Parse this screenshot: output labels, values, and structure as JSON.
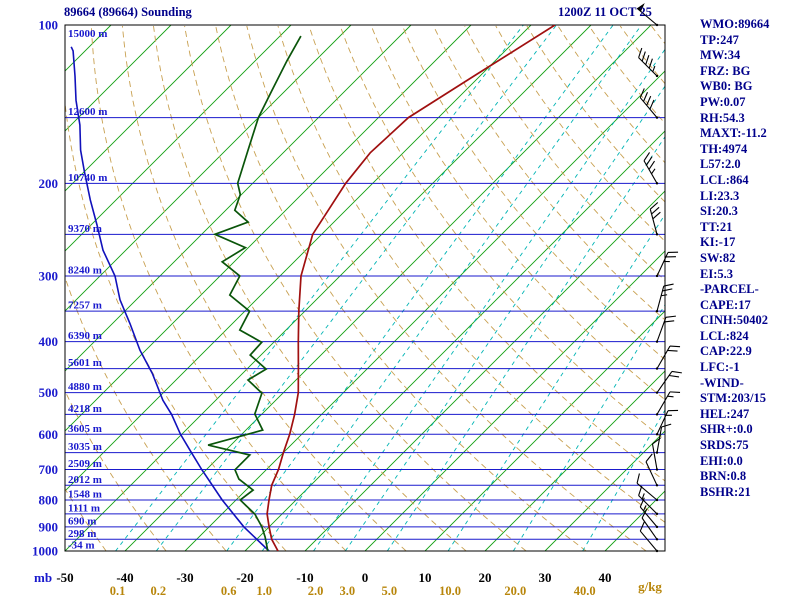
{
  "header": {
    "title": "89664 (89664) Sounding",
    "datetime": "1200Z 11 OCT 25"
  },
  "stats": [
    "WMO:89664",
    "TP:247",
    "MW:34",
    "FRZ: BG",
    "WB0: BG",
    "PW:0.07",
    "RH:54.3",
    "MAXT:-11.2",
    "TH:4974",
    "L57:2.0",
    "LCL:864",
    "LI:23.3",
    "SI:20.3",
    "TT:21",
    "KI:-17",
    "SW:82",
    "EI:5.3",
    "-PARCEL-",
    "CAPE:17",
    "CINH:50402",
    "LCL:824",
    "CAP:22.9",
    "LFC:-1",
    "-WIND-",
    "STM:203/15",
    "HEL:247",
    "SHR+:0.0",
    "SRDS:75",
    "EHI:0.0",
    "BRN:0.8",
    "BSHR:21"
  ],
  "chart_data": {
    "type": "skewt-sounding",
    "title": "89664 (89664) Sounding",
    "time": "1200Z 11 OCT 25",
    "pressure_unit": "mb",
    "mixing_ratio_unit": "g/kg",
    "pressure_ticks": [
      100,
      200,
      300,
      400,
      500,
      600,
      700,
      800,
      900,
      1000
    ],
    "temp_ticks": [
      -50,
      -40,
      -30,
      -20,
      -10,
      0,
      10,
      20,
      30,
      40
    ],
    "isotherm_range": [
      -130,
      40
    ],
    "isotherm_step": 10,
    "adiabat_range": [
      230,
      450
    ],
    "adiabat_step": 10,
    "mixing_ratio_values": [
      {
        "label": "0.1",
        "w": 0.1
      },
      {
        "label": "0.2",
        "w": 0.2
      },
      {
        "label": "0.6",
        "w": 0.6
      },
      {
        "label": "1.0",
        "w": 1.0
      },
      {
        "label": "2.0",
        "w": 2.0
      },
      {
        "label": "3.0",
        "w": 3.0
      },
      {
        "label": "5.0",
        "w": 5.0
      },
      {
        "label": "10.0",
        "w": 10.0
      },
      {
        "label": "20.0",
        "w": 20.0
      },
      {
        "label": "40.0",
        "w": 40.0
      }
    ],
    "heights": [
      {
        "p": 100,
        "label": "15000 m"
      },
      {
        "p": 150,
        "label": "12600 m"
      },
      {
        "p": 200,
        "label": "10740 m"
      },
      {
        "p": 250,
        "label": "9370 m"
      },
      {
        "p": 300,
        "label": "8240 m"
      },
      {
        "p": 350,
        "label": "7257 m"
      },
      {
        "p": 400,
        "label": "6390 m"
      },
      {
        "p": 450,
        "label": "5601 m"
      },
      {
        "p": 500,
        "label": "4880 m"
      },
      {
        "p": 550,
        "label": "4218 m"
      },
      {
        "p": 600,
        "label": "3605 m"
      },
      {
        "p": 650,
        "label": "3035 m"
      },
      {
        "p": 700,
        "label": "2509 m"
      },
      {
        "p": 750,
        "label": "2012 m"
      },
      {
        "p": 800,
        "label": "1548 m"
      },
      {
        "p": 850,
        "label": "1111 m"
      },
      {
        "p": 900,
        "label": "690 m"
      },
      {
        "p": 950,
        "label": "298 m"
      },
      {
        "p": 1000,
        "label": "-34 m"
      }
    ],
    "series": {
      "temperature": [
        [
          1000,
          -14.5
        ],
        [
          950,
          -17.5
        ],
        [
          900,
          -20
        ],
        [
          850,
          -22.5
        ],
        [
          800,
          -24.5
        ],
        [
          750,
          -26.5
        ],
        [
          700,
          -28
        ],
        [
          650,
          -30
        ],
        [
          600,
          -32
        ],
        [
          550,
          -34.5
        ],
        [
          500,
          -37.5
        ],
        [
          450,
          -41.5
        ],
        [
          400,
          -46
        ],
        [
          350,
          -51
        ],
        [
          300,
          -56.5
        ],
        [
          250,
          -61.5
        ],
        [
          200,
          -64.5
        ],
        [
          175,
          -65.5
        ],
        [
          150,
          -65
        ],
        [
          125,
          -61
        ],
        [
          100,
          -56
        ]
      ],
      "dewpoint": [
        [
          1000,
          -16.2
        ],
        [
          940,
          -19
        ],
        [
          900,
          -21.2
        ],
        [
          851,
          -24.5
        ],
        [
          800,
          -29.3
        ],
        [
          766,
          -28.8
        ],
        [
          730,
          -33
        ],
        [
          701,
          -35.2
        ],
        [
          657,
          -35.2
        ],
        [
          629,
          -43.8
        ],
        [
          589,
          -37.2
        ],
        [
          549,
          -41.2
        ],
        [
          501,
          -43.5
        ],
        [
          473,
          -48
        ],
        [
          451,
          -46.8
        ],
        [
          424,
          -51.8
        ],
        [
          401,
          -52
        ],
        [
          380,
          -57.7
        ],
        [
          350,
          -59.2
        ],
        [
          326,
          -65.2
        ],
        [
          300,
          -66.7
        ],
        [
          282,
          -72
        ],
        [
          265,
          -70.5
        ],
        [
          250,
          -77.8
        ],
        [
          237,
          -74.3
        ],
        [
          225,
          -78.5
        ],
        [
          210,
          -80.2
        ],
        [
          200,
          -82.5
        ],
        [
          173,
          -86.3
        ],
        [
          150,
          -90
        ],
        [
          133,
          -92.3
        ],
        [
          117,
          -94.7
        ],
        [
          105,
          -96.5
        ]
      ],
      "parcel": [
        [
          1000,
          -16
        ],
        [
          900,
          -24.2
        ],
        [
          800,
          -32.3
        ],
        [
          700,
          -40.8
        ],
        [
          643,
          -46
        ],
        [
          600,
          -50.2
        ],
        [
          550,
          -55
        ],
        [
          517,
          -58.8
        ],
        [
          460,
          -65
        ],
        [
          415,
          -71
        ],
        [
          370,
          -77
        ],
        [
          333,
          -82.7
        ],
        [
          300,
          -87.5
        ],
        [
          268,
          -93.8
        ],
        [
          240,
          -99
        ],
        [
          215,
          -104.3
        ],
        [
          190,
          -110
        ],
        [
          173,
          -114.2
        ],
        [
          155,
          -118.5
        ],
        [
          139,
          -123.3
        ],
        [
          125,
          -127.5
        ],
        [
          112,
          -132
        ],
        [
          110,
          -133
        ]
      ]
    },
    "winds": [
      [
        1000,
        320,
        10
      ],
      [
        950,
        325,
        10
      ],
      [
        900,
        320,
        15
      ],
      [
        850,
        315,
        15
      ],
      [
        800,
        310,
        10
      ],
      [
        750,
        335,
        10
      ],
      [
        700,
        350,
        10
      ],
      [
        650,
        10,
        10
      ],
      [
        600,
        25,
        15
      ],
      [
        550,
        30,
        15
      ],
      [
        500,
        35,
        20
      ],
      [
        450,
        30,
        20
      ],
      [
        400,
        20,
        20
      ],
      [
        350,
        15,
        25
      ],
      [
        300,
        25,
        25
      ],
      [
        250,
        345,
        30
      ],
      [
        200,
        330,
        35
      ],
      [
        150,
        320,
        40
      ],
      [
        125,
        315,
        45
      ],
      [
        100,
        310,
        50
      ]
    ],
    "wind_x": 657,
    "colors": {
      "axis": "#1a1acd",
      "title": "#00008b",
      "isotherm": "#12a012",
      "mixratio": "#00b4b4",
      "adiabat": "#c8a050",
      "temperature": "#a01010",
      "dewpoint": "#0a550a",
      "parcel": "#1111bb",
      "barb": "#000000",
      "templabel": "#000000",
      "mixlabel": "#b8860b"
    }
  }
}
